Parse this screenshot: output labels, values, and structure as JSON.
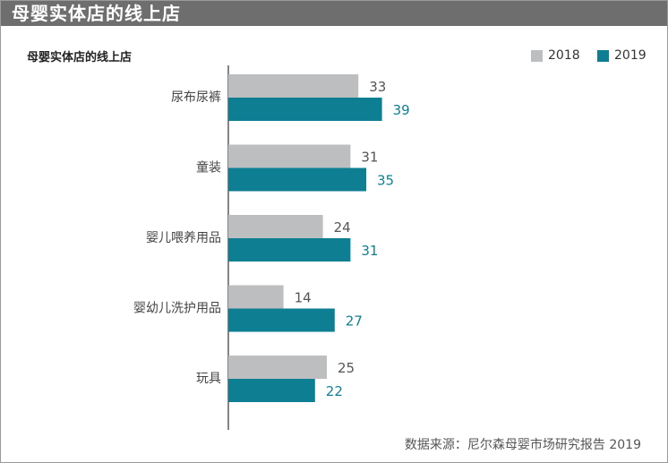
{
  "header": {
    "title": "母婴实体店的线上店"
  },
  "colors": {
    "s2018": "#bdbec0",
    "s2019": "#0e7f93",
    "label2018": "#555555",
    "label2019": "#0e7f93"
  },
  "chart_data": {
    "type": "bar",
    "orientation": "horizontal",
    "title": "母婴实体店的线上店",
    "categories": [
      "尿布尿裤",
      "童装",
      "婴儿喂养用品",
      "婴幼儿洗护用品",
      "玩具"
    ],
    "series": [
      {
        "name": "2018",
        "values": [
          33,
          31,
          24,
          14,
          25
        ]
      },
      {
        "name": "2019",
        "values": [
          39,
          35,
          31,
          27,
          22
        ]
      }
    ],
    "xlim": [
      0,
      70
    ],
    "legend": "top-right",
    "grid": false
  },
  "source": "数据来源：尼尔森母婴市场研究报告 2019"
}
